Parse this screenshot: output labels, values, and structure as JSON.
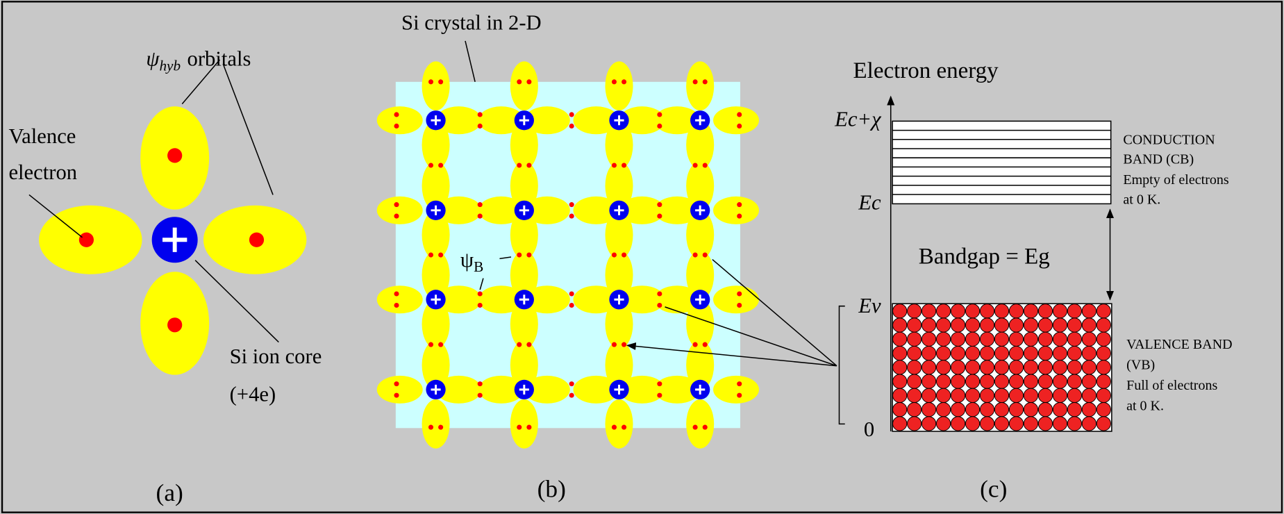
{
  "panel_a": {
    "caption": "(a)",
    "orbitals_symbol": "ψ",
    "orbitals_subscript": "hyb",
    "orbitals_text": "orbitals",
    "valence_electron": [
      "Valence",
      "electron"
    ],
    "ion_core": "Si ion core",
    "ion_core_charge": "(+4e)"
  },
  "panel_b": {
    "caption": "(b)",
    "title": "Si crystal in 2-D",
    "bond_symbol": "ψ",
    "bond_subscript": "B"
  },
  "panel_c": {
    "caption": "(c)",
    "axis_label": "Electron energy",
    "level_top": "Ec+χ",
    "level_ec": "Ec",
    "level_ev": "Ev",
    "level_zero": "0",
    "bandgap": "Bandgap = Eg",
    "conduction_band": [
      "CONDUCTION",
      "BAND (CB)",
      "Empty of electrons",
      "at 0 K."
    ],
    "valence_band": [
      "VALENCE BAND",
      "(VB)",
      "Full of electrons",
      "at 0 K."
    ]
  }
}
